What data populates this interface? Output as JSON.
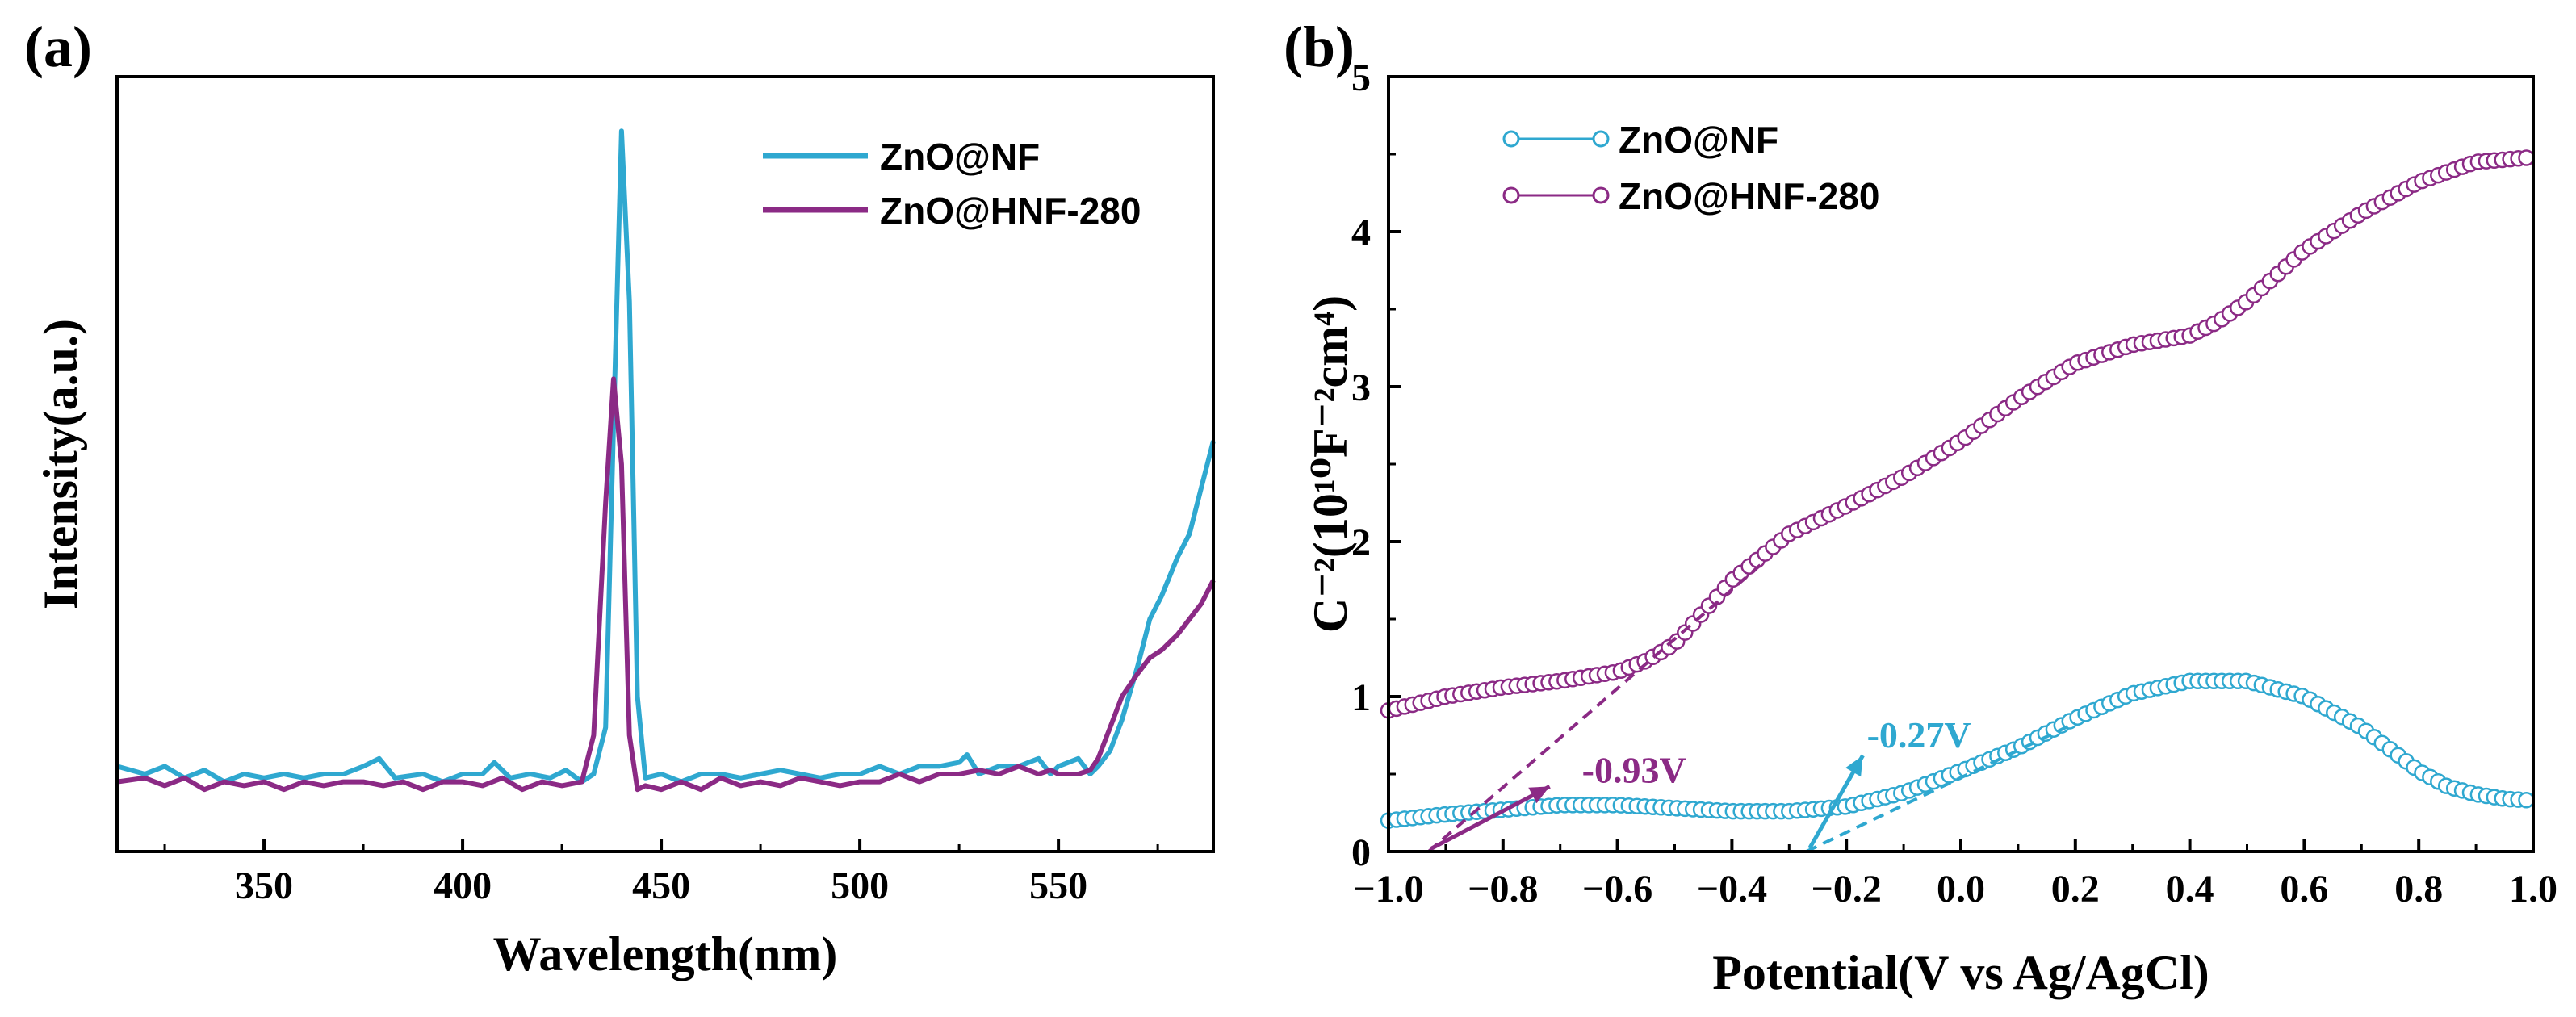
{
  "chart_data": [
    {
      "panel": "(a)",
      "type": "line",
      "title": "",
      "xlabel": "Wavelength(nm)",
      "ylabel": "Intensity(a.u.)",
      "xlim": [
        313,
        589
      ],
      "ylim": [
        0,
        1
      ],
      "x_ticks": [
        350,
        400,
        450,
        500,
        550
      ],
      "y_ticks": [],
      "legend_position": "top-right",
      "series": [
        {
          "name": "ZnO@NF",
          "color": "#2fa8d0",
          "x": [
            313,
            320,
            325,
            330,
            335,
            340,
            345,
            350,
            355,
            360,
            365,
            370,
            375,
            379,
            383,
            390,
            395,
            400,
            405,
            408,
            412,
            417,
            422,
            426,
            430,
            433,
            436,
            438,
            440,
            442,
            444,
            446,
            450,
            455,
            460,
            465,
            470,
            475,
            480,
            485,
            490,
            495,
            500,
            505,
            510,
            515,
            520,
            525,
            527,
            530,
            535,
            540,
            545,
            548,
            550,
            555,
            558,
            560,
            563,
            566,
            570,
            573,
            576,
            580,
            583,
            586,
            589
          ],
          "y": [
            0.11,
            0.1,
            0.11,
            0.095,
            0.105,
            0.09,
            0.1,
            0.095,
            0.1,
            0.095,
            0.1,
            0.1,
            0.11,
            0.12,
            0.095,
            0.1,
            0.09,
            0.1,
            0.1,
            0.115,
            0.095,
            0.1,
            0.095,
            0.105,
            0.09,
            0.1,
            0.16,
            0.55,
            0.93,
            0.71,
            0.2,
            0.095,
            0.1,
            0.09,
            0.1,
            0.1,
            0.095,
            0.1,
            0.105,
            0.1,
            0.095,
            0.1,
            0.1,
            0.11,
            0.1,
            0.11,
            0.11,
            0.115,
            0.125,
            0.1,
            0.11,
            0.11,
            0.12,
            0.1,
            0.11,
            0.12,
            0.1,
            0.11,
            0.13,
            0.17,
            0.24,
            0.3,
            0.33,
            0.38,
            0.41,
            0.47,
            0.53
          ]
        },
        {
          "name": "ZnO@HNF-280",
          "color": "#8b2a85",
          "x": [
            313,
            320,
            325,
            330,
            335,
            340,
            345,
            350,
            355,
            360,
            365,
            370,
            375,
            380,
            385,
            390,
            395,
            400,
            405,
            410,
            415,
            420,
            425,
            430,
            433,
            436,
            438,
            440,
            442,
            444,
            446,
            450,
            455,
            460,
            465,
            470,
            475,
            480,
            485,
            490,
            495,
            500,
            505,
            510,
            515,
            520,
            525,
            530,
            535,
            540,
            545,
            548,
            550,
            555,
            558,
            560,
            563,
            566,
            570,
            573,
            576,
            580,
            583,
            586,
            589
          ],
          "y": [
            0.09,
            0.095,
            0.085,
            0.095,
            0.08,
            0.09,
            0.085,
            0.09,
            0.08,
            0.09,
            0.085,
            0.09,
            0.09,
            0.085,
            0.09,
            0.08,
            0.09,
            0.09,
            0.085,
            0.095,
            0.08,
            0.09,
            0.085,
            0.09,
            0.15,
            0.45,
            0.61,
            0.5,
            0.15,
            0.08,
            0.085,
            0.08,
            0.09,
            0.08,
            0.095,
            0.085,
            0.09,
            0.085,
            0.095,
            0.09,
            0.085,
            0.09,
            0.09,
            0.1,
            0.09,
            0.1,
            0.1,
            0.105,
            0.1,
            0.11,
            0.1,
            0.105,
            0.1,
            0.1,
            0.105,
            0.12,
            0.16,
            0.2,
            0.23,
            0.25,
            0.26,
            0.28,
            0.3,
            0.32,
            0.35
          ]
        }
      ]
    },
    {
      "panel": "(b)",
      "type": "scatter",
      "title": "",
      "xlabel": "Potential(V vs Ag/AgCl)",
      "ylabel": "C⁻²(10¹⁰F⁻²cm⁴)",
      "xlim": [
        -1.0,
        1.0
      ],
      "ylim": [
        0,
        5
      ],
      "x_ticks": [
        "-1.0",
        "-0.8",
        "-0.6",
        "-0.4",
        "-0.2",
        "0.0",
        "0.2",
        "0.4",
        "0.6",
        "0.8",
        "1.0"
      ],
      "y_ticks": [
        "0",
        "1",
        "2",
        "3",
        "4",
        "5"
      ],
      "legend_position": "top-left",
      "series": [
        {
          "name": "ZnO@NF",
          "color": "#2fa8d0",
          "marker": "open-circle",
          "x": [
            -1.0,
            -0.9,
            -0.8,
            -0.7,
            -0.6,
            -0.5,
            -0.4,
            -0.3,
            -0.2,
            -0.1,
            0.0,
            0.1,
            0.2,
            0.3,
            0.4,
            0.5,
            0.6,
            0.7,
            0.8,
            0.85,
            0.9,
            0.95,
            1.0
          ],
          "y": [
            0.2,
            0.24,
            0.27,
            0.3,
            0.3,
            0.28,
            0.26,
            0.26,
            0.29,
            0.38,
            0.52,
            0.67,
            0.86,
            1.02,
            1.1,
            1.1,
            1.0,
            0.8,
            0.52,
            0.42,
            0.37,
            0.34,
            0.33
          ]
        },
        {
          "name": "ZnO@HNF-280",
          "color": "#8b2a85",
          "marker": "open-circle",
          "x": [
            -1.0,
            -0.9,
            -0.8,
            -0.7,
            -0.6,
            -0.55,
            -0.5,
            -0.4,
            -0.3,
            -0.2,
            -0.1,
            0.0,
            0.1,
            0.2,
            0.3,
            0.4,
            0.45,
            0.5,
            0.6,
            0.7,
            0.8,
            0.9,
            1.0
          ],
          "y": [
            0.91,
            1.0,
            1.06,
            1.1,
            1.16,
            1.23,
            1.34,
            1.75,
            2.05,
            2.23,
            2.42,
            2.65,
            2.92,
            3.15,
            3.27,
            3.33,
            3.42,
            3.55,
            3.88,
            4.12,
            4.32,
            4.45,
            4.48
          ]
        }
      ],
      "fit_lines": [
        {
          "series": "ZnO@HNF-280",
          "x": [
            -0.93,
            -0.35
          ],
          "y": [
            0.0,
            1.85
          ]
        },
        {
          "series": "ZnO@NF",
          "x": [
            -0.27,
            0.2
          ],
          "y": [
            0.0,
            0.83
          ]
        }
      ],
      "annotations": [
        {
          "text": "-0.93V",
          "x": -0.93,
          "color": "#8b2a85"
        },
        {
          "text": "-0.27V",
          "x": -0.27,
          "color": "#2fa8d0"
        }
      ]
    }
  ]
}
